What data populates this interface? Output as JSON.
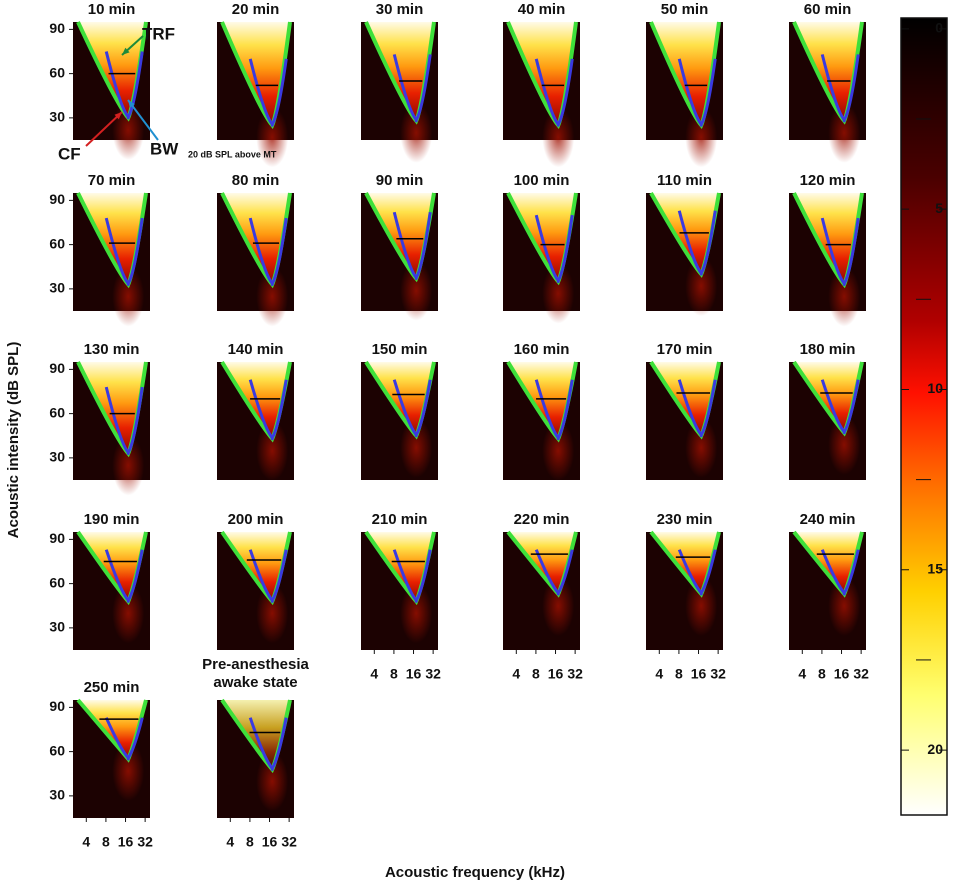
{
  "chart_data": {
    "type": "tuning-grid",
    "x_label": "Acoustic frequency (kHz)",
    "y_label": "Acoustic intensity (dB SPL)",
    "xscale": "log",
    "xlim": [
      2.5,
      38
    ],
    "xticks": [
      4,
      8,
      16,
      32
    ],
    "ylim": [
      15,
      95
    ],
    "yticks": [
      30,
      60,
      90
    ],
    "panels": [
      {
        "title": "10 min",
        "threshold": 30,
        "bw_level": 60
      },
      {
        "title": "20 min",
        "threshold": 25,
        "bw_level": 52
      },
      {
        "title": "30 min",
        "threshold": 28,
        "bw_level": 55
      },
      {
        "title": "40 min",
        "threshold": 25,
        "bw_level": 52
      },
      {
        "title": "50 min",
        "threshold": 25,
        "bw_level": 52
      },
      {
        "title": "60 min",
        "threshold": 28,
        "bw_level": 55
      },
      {
        "title": "70 min",
        "threshold": 33,
        "bw_level": 61
      },
      {
        "title": "80 min",
        "threshold": 33,
        "bw_level": 61
      },
      {
        "title": "90 min",
        "threshold": 37,
        "bw_level": 64
      },
      {
        "title": "100 min",
        "threshold": 35,
        "bw_level": 60
      },
      {
        "title": "110 min",
        "threshold": 40,
        "bw_level": 68
      },
      {
        "title": "120 min",
        "threshold": 33,
        "bw_level": 60
      },
      {
        "title": "130 min",
        "threshold": 33,
        "bw_level": 60
      },
      {
        "title": "140 min",
        "threshold": 43,
        "bw_level": 70
      },
      {
        "title": "150 min",
        "threshold": 45,
        "bw_level": 73
      },
      {
        "title": "160 min",
        "threshold": 43,
        "bw_level": 70
      },
      {
        "title": "170 min",
        "threshold": 45,
        "bw_level": 74
      },
      {
        "title": "180 min",
        "threshold": 47,
        "bw_level": 74
      },
      {
        "title": "190 min",
        "threshold": 48,
        "bw_level": 75
      },
      {
        "title": "200 min",
        "threshold": 48,
        "bw_level": 76
      },
      {
        "title": "210 min",
        "threshold": 48,
        "bw_level": 75
      },
      {
        "title": "220 min",
        "threshold": 53,
        "bw_level": 80
      },
      {
        "title": "230 min",
        "threshold": 53,
        "bw_level": 78
      },
      {
        "title": "240 min",
        "threshold": 53,
        "bw_level": 80
      },
      {
        "title": "250 min",
        "threshold": 55,
        "bw_level": 82
      },
      {
        "title": [
          "Pre-anesthesia",
          "awake state"
        ],
        "threshold": 48,
        "bw_level": 73
      }
    ],
    "annotations": {
      "trf": "TRF",
      "cf": "CF",
      "bw": "BW",
      "bw_note": "20 dB SPL above MT"
    },
    "colorbar": {
      "lim": [
        -0.3,
        21.8
      ],
      "ticks": [
        0,
        5,
        10,
        15,
        20
      ],
      "minor_ticks": [
        2.5,
        7.5,
        12.5,
        17.5
      ]
    }
  }
}
